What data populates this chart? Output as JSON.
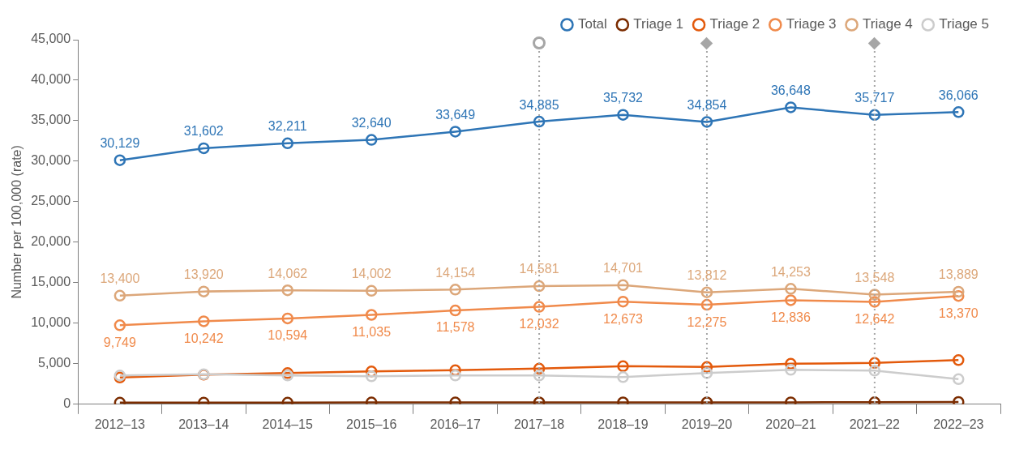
{
  "chart_data": {
    "type": "line",
    "ylabel": "Number per 100,000 (rate)",
    "categories": [
      "2012–13",
      "2013–14",
      "2014–15",
      "2015–16",
      "2016–17",
      "2017–18",
      "2018–19",
      "2019–20",
      "2020–21",
      "2021–22",
      "2022–23"
    ],
    "ylim": [
      0,
      45000
    ],
    "yticks": [
      0,
      {
        "value": 5000,
        "label": "5,000"
      },
      {
        "value": 10000,
        "label": "10,000"
      },
      {
        "value": 15000,
        "label": "15,000"
      },
      {
        "value": 20000,
        "label": "20,000"
      },
      {
        "value": 25000,
        "label": "25,000"
      },
      {
        "value": 30000,
        "label": "30,000"
      },
      {
        "value": 35000,
        "label": "35,000"
      },
      {
        "value": 40000,
        "label": "40,000"
      },
      {
        "value": 45000,
        "label": "45,000"
      }
    ],
    "grid": false,
    "legend": "top right",
    "marker": "circle",
    "line_style": "solid",
    "series": [
      {
        "name": "Total",
        "color": "#2e75b6",
        "values": [
          30129,
          31602,
          32211,
          32640,
          33649,
          34885,
          35732,
          34854,
          36648,
          35717,
          36066
        ],
        "value_labels": [
          "30,129",
          "31,602",
          "32,211",
          "32,640",
          "33,649",
          "34,885",
          "35,732",
          "34,854",
          "36,648",
          "35,717",
          "36,066"
        ]
      },
      {
        "name": "Triage 1",
        "color": "#7b2c00",
        "values": [
          200,
          200,
          200,
          220,
          220,
          230,
          230,
          230,
          240,
          250,
          280
        ]
      },
      {
        "name": "Triage 2",
        "color": "#e35a0c",
        "values": [
          3300,
          3650,
          3850,
          4050,
          4200,
          4400,
          4700,
          4600,
          5000,
          5100,
          5450
        ]
      },
      {
        "name": "Triage 3",
        "color": "#f08a4b",
        "values": [
          9749,
          10242,
          10594,
          11035,
          11578,
          12032,
          12673,
          12275,
          12836,
          12642,
          13370
        ],
        "value_labels": [
          "9,749",
          "10,242",
          "10,594",
          "11,035",
          "11,578",
          "12,032",
          "12,673",
          "12,275",
          "12,836",
          "12,642",
          "13,370"
        ]
      },
      {
        "name": "Triage 4",
        "color": "#dca77a",
        "values": [
          13400,
          13920,
          14062,
          14002,
          14154,
          14581,
          14701,
          13812,
          14253,
          13548,
          13889
        ],
        "value_labels": [
          "13,400",
          "13,920",
          "14,062",
          "14,002",
          "14,154",
          "14,581",
          "14,701",
          "13,812",
          "14,253",
          "13,548",
          "13,889"
        ]
      },
      {
        "name": "Triage 5",
        "color": "#cccccc",
        "values": [
          3550,
          3700,
          3550,
          3450,
          3550,
          3550,
          3350,
          3850,
          4250,
          4150,
          3100
        ]
      }
    ],
    "ref_lines": [
      {
        "axis": "x",
        "value": "2017–18",
        "color": "#a6a6a6",
        "line_style": "dotted"
      },
      {
        "axis": "x",
        "value": "2019–20",
        "color": "#a6a6a6",
        "line_style": "dotted"
      },
      {
        "axis": "x",
        "value": "2021–22",
        "color": "#a6a6a6",
        "line_style": "dotted"
      }
    ]
  }
}
